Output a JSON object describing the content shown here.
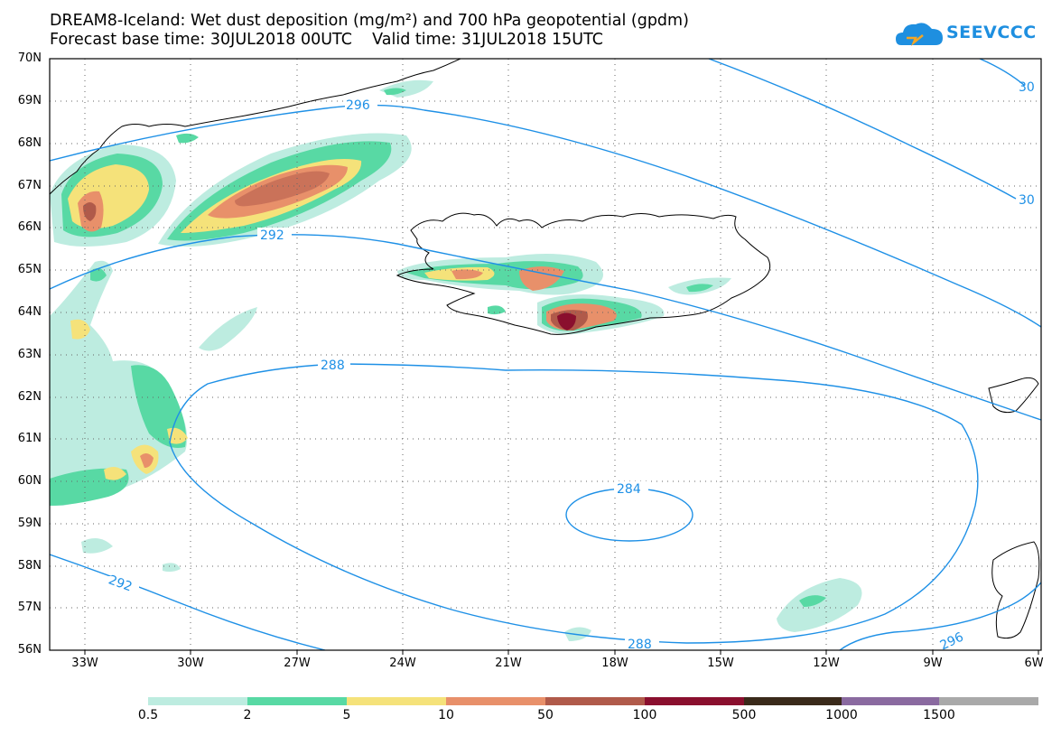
{
  "title": {
    "line1": "DREAM8-Iceland: Wet dust deposition (mg/m²) and 700 hPa geopotential (gpdm)",
    "line2": "Forecast base time: 30JUL2018 00UTC    Valid time: 31JUL2018 15UTC"
  },
  "logo": {
    "text": "SEEVCCC",
    "icon": "cloud-icon",
    "color": "#1e8fe0"
  },
  "map": {
    "lat_labels": [
      "70N",
      "69N",
      "68N",
      "67N",
      "66N",
      "65N",
      "64N",
      "63N",
      "62N",
      "61N",
      "60N",
      "59N",
      "58N",
      "57N",
      "56N"
    ],
    "lon_labels": [
      "33W",
      "30W",
      "27W",
      "24W",
      "21W",
      "18W",
      "15W",
      "12W",
      "9W",
      "6W"
    ],
    "contour_color": "#1e90e6",
    "contour_labels": [
      "296",
      "292",
      "288",
      "284",
      "288",
      "292",
      "296",
      "30",
      "30"
    ]
  },
  "colorbar": {
    "colors": [
      "#bdece0",
      "#58d9a4",
      "#f5e27a",
      "#e8906a",
      "#b05a4a",
      "#8a0f2e",
      "#3a2a1a",
      "#8a6aa0",
      "#a9a9a9"
    ],
    "labels": [
      "0.5",
      "2",
      "5",
      "10",
      "50",
      "100",
      "500",
      "1000",
      "1500"
    ]
  }
}
